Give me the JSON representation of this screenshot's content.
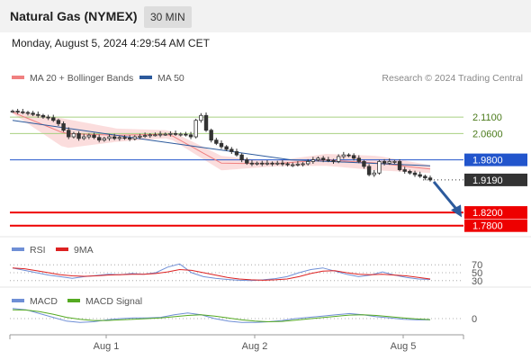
{
  "header": {
    "instrument": "Natural Gas (NYMEX)",
    "timeframe": "30 MIN",
    "datetime": "Monday, August 5, 2024 4:29:54 AM CET"
  },
  "colors": {
    "candle": "#333333",
    "bollinger_fill": "#fad2d2",
    "ma20": "#f08080",
    "ma50": "#2c5a9c",
    "resistance": "#a8d080",
    "pivot": "#2255cc",
    "support": "#ee0000",
    "current": "#333333",
    "rsi": "#6f8fd6",
    "rsi_ma": "#dd2222",
    "macd": "#6f8fd6",
    "macd_signal": "#55aa22",
    "arrow": "#2c5a9c"
  },
  "chart_data": [
    {
      "type": "line",
      "title": "",
      "legend": [
        {
          "name": "MA 20 + Bollinger Bands",
          "color": "#f08080"
        },
        {
          "name": "MA 50",
          "color": "#2c5a9c"
        }
      ],
      "legend_position": "top-left",
      "copyright": "Research © 2024 Trading Central",
      "x_ticks": [
        "Aug 1",
        "Aug 2",
        "Aug 5"
      ],
      "ylim": [
        1.76,
        2.165
      ],
      "levels": [
        {
          "label": "2.1100",
          "value": 2.11,
          "kind": "resistance"
        },
        {
          "label": "2.0600",
          "value": 2.06,
          "kind": "resistance"
        },
        {
          "label": "1.9800",
          "value": 1.98,
          "kind": "pivot"
        },
        {
          "label": "1.9190",
          "value": 1.919,
          "kind": "current"
        },
        {
          "label": "1.8200",
          "value": 1.82,
          "kind": "support"
        },
        {
          "label": "1.7800",
          "value": 1.78,
          "kind": "support"
        }
      ],
      "closes": [
        2.128,
        2.126,
        2.124,
        2.122,
        2.118,
        2.115,
        2.11,
        2.108,
        2.1,
        2.09,
        2.07,
        2.05,
        2.06,
        2.045,
        2.05,
        2.055,
        2.048,
        2.04,
        2.045,
        2.05,
        2.045,
        2.048,
        2.046,
        2.044,
        2.05,
        2.052,
        2.054,
        2.056,
        2.056,
        2.058,
        2.058,
        2.06,
        2.058,
        2.058,
        2.056,
        2.05,
        2.1,
        2.115,
        2.07,
        2.04,
        2.03,
        2.02,
        2.012,
        2.005,
        1.995,
        1.98,
        1.97,
        1.968,
        1.97,
        1.968,
        1.97,
        1.968,
        1.97,
        1.968,
        1.965,
        1.965,
        1.967,
        1.968,
        1.975,
        1.98,
        1.985,
        1.98,
        1.978,
        1.975,
        1.99,
        1.995,
        1.993,
        1.985,
        1.975,
        1.96,
        1.935,
        1.94,
        1.975,
        1.97,
        1.975,
        1.975,
        1.95,
        1.945,
        1.94,
        1.935,
        1.93,
        1.925,
        1.919
      ],
      "ma50": [
        2.1,
        2.039,
        1.98,
        1.962
      ],
      "ma20": [
        2.125,
        2.06,
        2.055,
        2.058,
        1.97,
        1.968,
        1.98,
        1.97,
        1.952
      ],
      "forecast_arrow": {
        "from": 1.919,
        "to": 1.8
      }
    },
    {
      "type": "line",
      "legend": [
        {
          "name": "RSI",
          "color": "#6f8fd6"
        },
        {
          "name": "9MA",
          "color": "#dd2222"
        }
      ],
      "y_ticks": [
        "70",
        "50",
        "30"
      ],
      "ylim": [
        25,
        75
      ],
      "rsi": [
        62,
        56,
        50,
        44,
        40,
        36,
        40,
        43,
        46,
        45,
        48,
        46,
        50,
        64,
        72,
        50,
        40,
        36,
        33,
        31,
        30,
        32,
        35,
        40,
        50,
        58,
        62,
        54,
        46,
        40,
        44,
        52,
        44,
        38,
        34,
        33
      ],
      "rsi_ma": [
        62,
        60,
        55,
        50,
        45,
        42,
        41,
        42,
        44,
        45,
        46,
        46,
        48,
        52,
        58,
        56,
        50,
        44,
        38,
        34,
        32,
        31,
        32,
        34,
        40,
        48,
        54,
        55,
        50,
        46,
        45,
        46,
        44,
        42,
        38,
        34
      ]
    },
    {
      "type": "line",
      "legend": [
        {
          "name": "MACD",
          "color": "#6f8fd6"
        },
        {
          "name": "MACD Signal",
          "color": "#55aa22"
        }
      ],
      "y_ticks": [
        "0"
      ],
      "ylim": [
        -1,
        1
      ],
      "macd": [
        0.8,
        0.7,
        0.4,
        0.1,
        -0.2,
        -0.3,
        -0.25,
        -0.1,
        0.0,
        0.05,
        0.05,
        0.1,
        0.3,
        0.45,
        0.3,
        0.0,
        -0.2,
        -0.3,
        -0.3,
        -0.25,
        -0.15,
        0.0,
        0.1,
        0.2,
        0.3,
        0.4,
        0.3,
        0.15,
        0.05,
        -0.05,
        -0.1,
        -0.1
      ],
      "signal": [
        0.7,
        0.68,
        0.55,
        0.35,
        0.1,
        -0.05,
        -0.15,
        -0.15,
        -0.1,
        -0.05,
        0.0,
        0.05,
        0.15,
        0.25,
        0.3,
        0.2,
        0.05,
        -0.1,
        -0.2,
        -0.25,
        -0.22,
        -0.12,
        -0.02,
        0.08,
        0.18,
        0.28,
        0.3,
        0.25,
        0.15,
        0.05,
        -0.03,
        -0.08
      ]
    }
  ]
}
